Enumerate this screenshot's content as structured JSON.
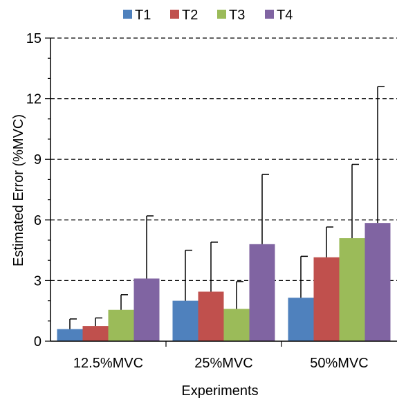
{
  "chart_data": {
    "type": "bar",
    "title": "",
    "xlabel": "Experiments",
    "ylabel": "Estimated Error (%MVC)",
    "categories": [
      "12.5%MVC",
      "25%MVC",
      "50%MVC"
    ],
    "series": [
      {
        "name": "T1",
        "color": "#4f81bd",
        "values": [
          0.6,
          2.0,
          2.15
        ],
        "errors": [
          0.5,
          2.5,
          2.05
        ]
      },
      {
        "name": "T2",
        "color": "#c0504d",
        "values": [
          0.75,
          2.45,
          4.15
        ],
        "errors": [
          0.4,
          2.45,
          1.5
        ]
      },
      {
        "name": "T3",
        "color": "#9bbb59",
        "values": [
          1.55,
          1.6,
          5.1
        ],
        "errors": [
          0.75,
          1.35,
          3.65
        ]
      },
      {
        "name": "T4",
        "color": "#8064a2",
        "values": [
          3.1,
          4.8,
          5.85
        ],
        "errors": [
          3.1,
          3.45,
          6.75
        ]
      }
    ],
    "ylim": [
      0,
      15
    ],
    "yticks": [
      0,
      3,
      6,
      9,
      12,
      15
    ],
    "grid": "dashed horizontal",
    "legend": "top-center"
  }
}
